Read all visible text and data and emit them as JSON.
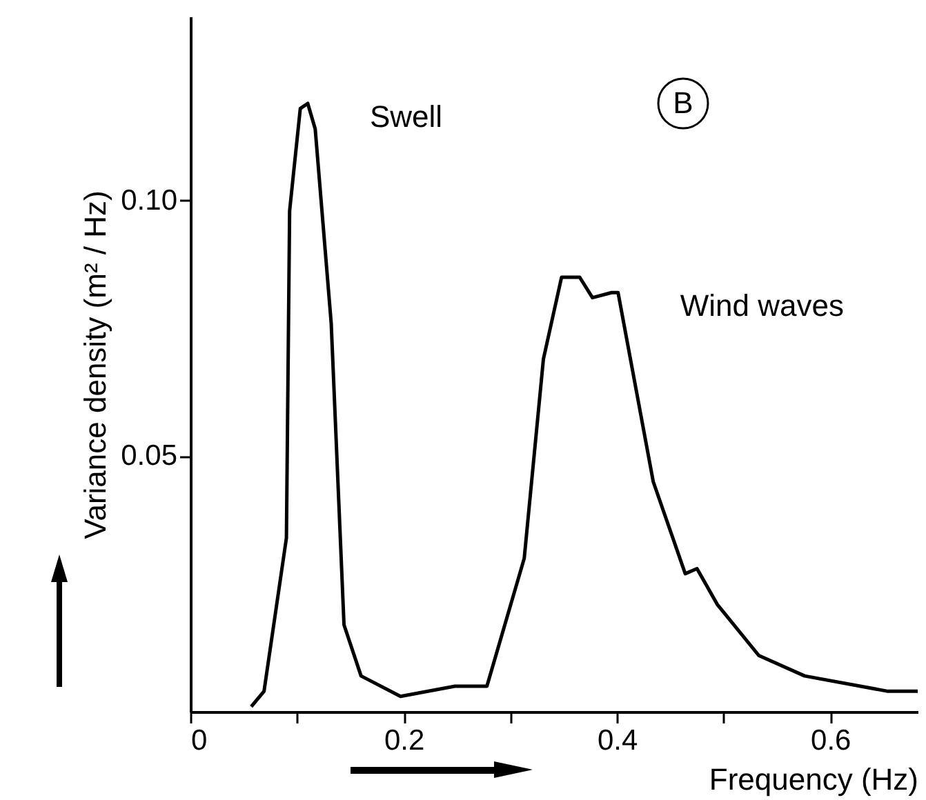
{
  "chart_data": {
    "type": "line",
    "xlabel": "Frequency (Hz)",
    "ylabel": "Variance density (m² / Hz)",
    "x": [
      0.057,
      0.069,
      0.09,
      0.093,
      0.103,
      0.11,
      0.117,
      0.132,
      0.144,
      0.16,
      0.197,
      0.248,
      0.278,
      0.313,
      0.331,
      0.348,
      0.365,
      0.377,
      0.395,
      0.401,
      0.434,
      0.464,
      0.475,
      0.494,
      0.533,
      0.576,
      0.654,
      0.682
    ],
    "series": [
      {
        "color": "#000000",
        "values": [
          0.001,
          0.004,
          0.034,
          0.098,
          0.118,
          0.119,
          0.114,
          0.076,
          0.017,
          0.007,
          0.003,
          0.005,
          0.005,
          0.03,
          0.069,
          0.085,
          0.085,
          0.081,
          0.082,
          0.082,
          0.045,
          0.027,
          0.028,
          0.021,
          0.011,
          0.007,
          0.004,
          0.004
        ]
      }
    ],
    "xlim": [
      0,
      0.682
    ],
    "xticks": [
      0,
      {
        "value": 0.1,
        "label": null
      },
      0.2,
      {
        "value": 0.3,
        "label": null
      },
      0.4,
      {
        "value": 0.5,
        "label": null
      },
      0.6
    ],
    "ylim": [
      0,
      0.136
    ],
    "yticks": [
      0.05,
      {
        "value": 0.1,
        "label": "0.10"
      }
    ],
    "grid": false,
    "marker": "none",
    "line_style": "solid",
    "annotations": [
      {
        "text": "Swell",
        "x": 0.11,
        "y": 0.119
      },
      {
        "text": "Wind waves",
        "x": 0.401,
        "y": 0.082
      },
      "B"
    ]
  }
}
